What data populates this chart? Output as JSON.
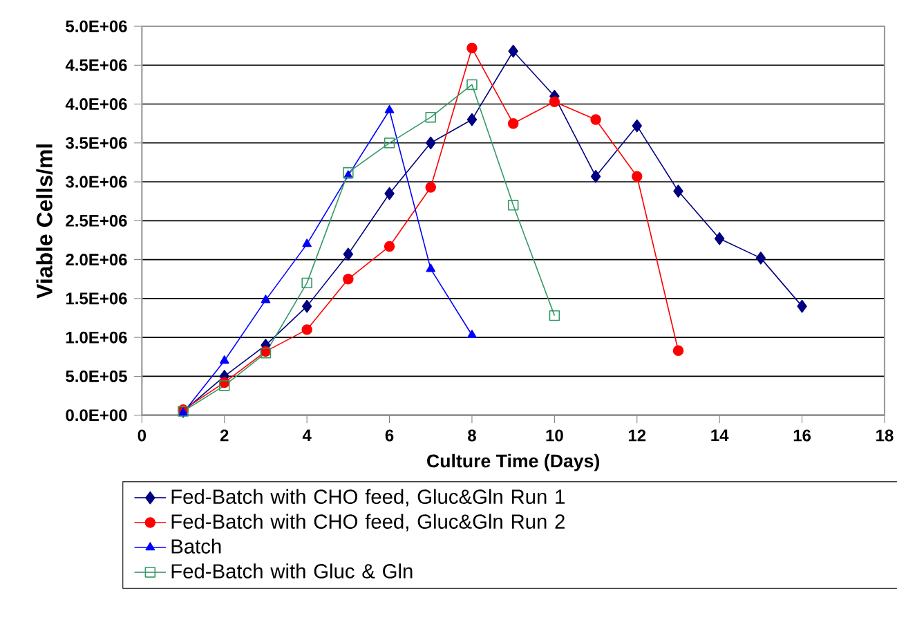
{
  "chart_data": {
    "type": "line",
    "xlabel": "Culture Time (Days)",
    "ylabel": "Viable Cells/ml",
    "xlim": [
      0,
      18
    ],
    "xticks": [
      0,
      2,
      4,
      6,
      8,
      10,
      12,
      14,
      16,
      18
    ],
    "ylim": [
      0,
      5000000
    ],
    "yticks": [
      {
        "value": 0,
        "label": "0.0E+00"
      },
      {
        "value": 500000,
        "label": "5.0E+05"
      },
      {
        "value": 1000000,
        "label": "1.0E+06"
      },
      {
        "value": 1500000,
        "label": "1.5E+06"
      },
      {
        "value": 2000000,
        "label": "2.0E+06"
      },
      {
        "value": 2500000,
        "label": "2.5E+06"
      },
      {
        "value": 3000000,
        "label": "3.0E+06"
      },
      {
        "value": 3500000,
        "label": "3.5E+06"
      },
      {
        "value": 4000000,
        "label": "4.0E+06"
      },
      {
        "value": 4500000,
        "label": "4.5E+06"
      },
      {
        "value": 5000000,
        "label": "5.0E+06"
      }
    ],
    "grid": "y",
    "legend": "bottom",
    "line_style": "solid",
    "series": [
      {
        "name": "Fed-Batch with CHO feed, Gluc&Gln Run 1",
        "color": "#000080",
        "marker": "diamond",
        "x": [
          1,
          2,
          3,
          4,
          5,
          6,
          7,
          8,
          9,
          10,
          11,
          12,
          13,
          14,
          15,
          16
        ],
        "values": [
          50000,
          500000,
          900000,
          1400000,
          2070000,
          2850000,
          3500000,
          3800000,
          4680000,
          4100000,
          3070000,
          3720000,
          2880000,
          2270000,
          2020000,
          1400000
        ]
      },
      {
        "name": "Fed-Batch with CHO feed, Gluc&Gln Run 2",
        "color": "#ff0000",
        "marker": "circle",
        "x": [
          1,
          2,
          3,
          4,
          5,
          6,
          7,
          8,
          9,
          10,
          11,
          12,
          13
        ],
        "values": [
          70000,
          420000,
          820000,
          1100000,
          1750000,
          2170000,
          2930000,
          4720000,
          3750000,
          4030000,
          3800000,
          3070000,
          830000
        ]
      },
      {
        "name": "Batch",
        "color": "#0000ff",
        "marker": "triangle",
        "x": [
          1,
          2,
          3,
          4,
          5,
          6,
          7,
          8
        ],
        "values": [
          30000,
          700000,
          1480000,
          2200000,
          3080000,
          3920000,
          1880000,
          1030000
        ]
      },
      {
        "name": "Fed-Batch with Gluc & Gln",
        "color": "#339966",
        "marker": "square",
        "x": [
          1,
          2,
          3,
          4,
          5,
          6,
          7,
          8,
          9,
          10
        ],
        "values": [
          50000,
          380000,
          800000,
          1700000,
          3120000,
          3500000,
          3830000,
          4250000,
          2700000,
          1280000
        ]
      }
    ]
  }
}
